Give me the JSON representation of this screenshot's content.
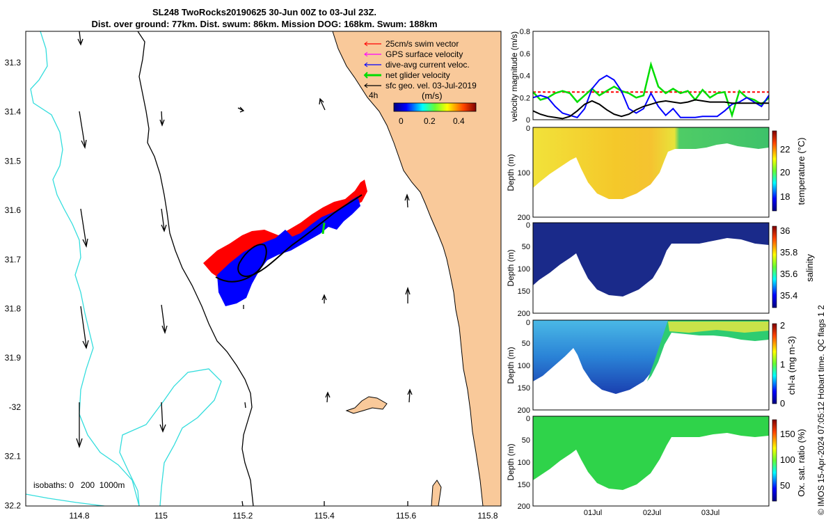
{
  "map": {
    "title_line1": "SL248 TwoRocks20190625 30-Jun 00Z to 03-Jul 23Z.",
    "title_line2": "Dist. over ground: 77km. Dist. swum: 86km. Mission DOG: 168km. Swum: 188km",
    "lat_ticks": [
      "31.3",
      "31.4",
      "31.5",
      "31.6",
      "31.7",
      "31.8",
      "31.9",
      "-32",
      "32.1",
      "32.2"
    ],
    "lon_ticks": [
      "114.8",
      "115",
      "115.2",
      "115.4",
      "115.6",
      "115.8"
    ],
    "legend": [
      {
        "label": "25cm/s swim vector",
        "color": "#ff0000"
      },
      {
        "label": "GPS surface velocity",
        "color": "#ff00ff"
      },
      {
        "label": "dive-avg current veloc.",
        "color": "#0000ff"
      },
      {
        "label": "net glider velocity",
        "color": "#00dd00"
      },
      {
        "label": "sfc geo. vel. 03-Jul-2019",
        "color": "#000000"
      }
    ],
    "legend_extra": "4h",
    "colorbar_unit": "(m/s)",
    "colorbar_ticks": [
      "0",
      "0.2",
      "0.4"
    ],
    "isobaths_label": "isobaths: 0   200  1000m",
    "colors": {
      "land": "#f9c99a",
      "iso200": "#000000",
      "iso1000": "#33dddd"
    }
  },
  "chart_data": [
    {
      "type": "line",
      "ylabel": "velocity magnitude (m/s)",
      "ylim": [
        0,
        0.8
      ],
      "yticks": [
        "0",
        "0.2",
        "0.4",
        "0.6",
        "0.8"
      ],
      "x": [
        0,
        3,
        6,
        9,
        12,
        15,
        18,
        21,
        24,
        27,
        30,
        33,
        36,
        39,
        42,
        45,
        48,
        51,
        54,
        57,
        60,
        63,
        66,
        69,
        72,
        75,
        78,
        81,
        84,
        87,
        90,
        93,
        96
      ],
      "series": [
        {
          "color": "#ff0000",
          "style": "dashed",
          "values": [
            0.25,
            0.25,
            0.25,
            0.25,
            0.25,
            0.25,
            0.25,
            0.25,
            0.25,
            0.25,
            0.25,
            0.25,
            0.25,
            0.25,
            0.25,
            0.25,
            0.25,
            0.25,
            0.25,
            0.25,
            0.25,
            0.25,
            0.25,
            0.25,
            0.25,
            0.25,
            0.25,
            0.25,
            0.25,
            0.25,
            0.25,
            0.25,
            0.25
          ]
        },
        {
          "color": "#00dd00",
          "style": "solid",
          "values": [
            0.25,
            0.18,
            0.2,
            0.24,
            0.26,
            0.24,
            0.16,
            0.22,
            0.28,
            0.22,
            0.26,
            0.3,
            0.26,
            0.24,
            0.2,
            0.22,
            0.5,
            0.3,
            0.24,
            0.28,
            0.24,
            0.26,
            0.18,
            0.27,
            0.2,
            0.24,
            0.25,
            0.04,
            0.26,
            0.2,
            0.18,
            0.14,
            0.2
          ]
        },
        {
          "color": "#0000ff",
          "style": "solid",
          "values": [
            0.2,
            0.22,
            0.2,
            0.12,
            0.06,
            0.04,
            0.02,
            0.1,
            0.28,
            0.36,
            0.4,
            0.36,
            0.26,
            0.1,
            0.06,
            0.1,
            0.24,
            0.12,
            0.04,
            0.1,
            0.02,
            0.02,
            0.02,
            0.03,
            0.03,
            0.03,
            0.08,
            0.14,
            0.16,
            0.2,
            0.16,
            0.12,
            0.22
          ]
        },
        {
          "color": "#000000",
          "style": "solid",
          "values": [
            0.08,
            0.05,
            0.03,
            0.02,
            0.01,
            0.03,
            0.08,
            0.14,
            0.17,
            0.14,
            0.09,
            0.05,
            0.03,
            0.05,
            0.09,
            0.12,
            0.14,
            0.16,
            0.17,
            0.16,
            0.15,
            0.16,
            0.18,
            0.17,
            0.16,
            0.16,
            0.16,
            0.15,
            0.15,
            0.15,
            0.15,
            0.15,
            0.15
          ]
        }
      ]
    },
    {
      "type": "heatmap",
      "ylabel": "Depth (m)",
      "clabel": "temperature (°C)",
      "ctick_labels": [
        "18",
        "20",
        "22"
      ],
      "yticks": [
        "0",
        "100",
        "200"
      ]
    },
    {
      "type": "heatmap",
      "ylabel": "Depth (m)",
      "clabel": "salinity",
      "ctick_labels": [
        "35.4",
        "35.6",
        "35.8",
        "36"
      ],
      "yticks": [
        "0",
        "50",
        "100",
        "150",
        "200"
      ]
    },
    {
      "type": "heatmap",
      "ylabel": "Depth (m)",
      "clabel": "chl-a (mg m-3)",
      "ctick_labels": [
        "0",
        "1",
        "2"
      ],
      "yticks": [
        "0",
        "50",
        "100",
        "150",
        "200"
      ]
    },
    {
      "type": "heatmap",
      "ylabel": "Depth (m)",
      "clabel": "Ox. sat. ratio (%)",
      "ctick_labels": [
        "50",
        "100",
        "150"
      ],
      "yticks": [
        "0",
        "50",
        "100",
        "150",
        "200"
      ],
      "xticks": [
        "01Jul",
        "02Jul",
        "03Jul"
      ]
    }
  ],
  "credit": "© IMOS 15-Apr-2024 07:05:12 Hobart time. QC flags 1  2"
}
